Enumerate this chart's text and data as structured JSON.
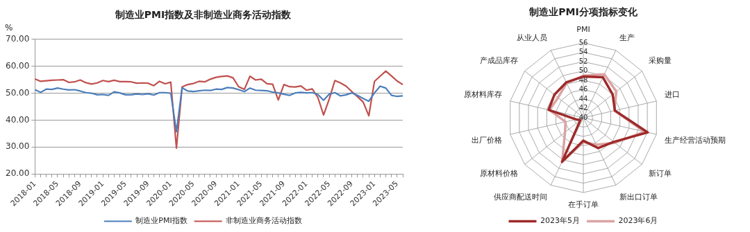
{
  "chart_data": [
    {
      "type": "line",
      "title": "制造业PMI指数及非制造业商务活动指数",
      "ylabel": "%",
      "categories": [
        "2018-01",
        null,
        null,
        null,
        "2018-05",
        null,
        null,
        null,
        "2018-09",
        null,
        null,
        null,
        "2019-01",
        null,
        null,
        null,
        "2019-05",
        null,
        null,
        null,
        "2019-09",
        null,
        null,
        null,
        "2020-01",
        null,
        null,
        null,
        "2020-05",
        null,
        null,
        null,
        "2020-09",
        null,
        null,
        null,
        "2021-01",
        null,
        null,
        null,
        "2021-05",
        null,
        null,
        null,
        "2021-09",
        null,
        null,
        null,
        "2022-01",
        null,
        null,
        null,
        "2022-05",
        null,
        null,
        null,
        "2022-09",
        null,
        null,
        null,
        "2023-01",
        null,
        null,
        null,
        "2023-05",
        null
      ],
      "series": [
        {
          "name": "制造业PMI指数",
          "color": "#4a7ebb",
          "values": [
            51.3,
            50.3,
            51.5,
            51.4,
            51.9,
            51.5,
            51.2,
            51.3,
            50.8,
            50.2,
            50.0,
            49.4,
            49.5,
            49.2,
            50.5,
            50.1,
            49.4,
            49.4,
            49.7,
            49.5,
            49.8,
            49.3,
            50.2,
            50.2,
            50.0,
            35.7,
            52.0,
            50.8,
            50.6,
            50.9,
            51.1,
            51.0,
            51.5,
            51.4,
            52.1,
            51.9,
            51.3,
            50.6,
            51.9,
            51.1,
            51.0,
            50.9,
            50.4,
            50.1,
            49.6,
            49.2,
            50.1,
            50.3,
            50.1,
            50.2,
            49.5,
            47.4,
            49.6,
            50.2,
            49.0,
            49.4,
            50.1,
            49.2,
            48.0,
            47.0,
            50.1,
            52.6,
            51.9,
            49.2,
            48.8,
            49.0
          ]
        },
        {
          "name": "非制造业商务活动指数",
          "color": "#c0504d",
          "values": [
            55.3,
            54.4,
            54.6,
            54.8,
            54.9,
            55.0,
            54.0,
            54.2,
            54.9,
            53.9,
            53.4,
            53.8,
            54.7,
            54.3,
            54.8,
            54.3,
            54.3,
            54.2,
            53.7,
            53.8,
            53.7,
            52.8,
            54.4,
            53.5,
            54.1,
            29.6,
            52.3,
            53.2,
            53.6,
            54.4,
            54.2,
            55.2,
            55.9,
            56.2,
            56.4,
            55.7,
            52.4,
            51.4,
            56.3,
            54.9,
            55.2,
            53.5,
            53.3,
            47.5,
            53.2,
            52.4,
            52.3,
            52.7,
            51.1,
            51.6,
            48.4,
            41.9,
            47.8,
            54.7,
            53.8,
            52.6,
            50.6,
            48.7,
            46.7,
            41.6,
            54.4,
            56.3,
            58.2,
            56.4,
            54.5,
            53.2
          ]
        }
      ],
      "ylim": [
        20,
        70
      ],
      "yticks": [
        {
          "value": 20,
          "label": "20.00"
        },
        {
          "value": 30,
          "label": "30.00"
        },
        {
          "value": 40,
          "label": "40.00"
        },
        {
          "value": 50,
          "label": "50.00"
        },
        {
          "value": 60,
          "label": "60.00"
        },
        {
          "value": 70,
          "label": "70.00"
        }
      ],
      "grid": "y",
      "legend": "bottom",
      "marker": "none",
      "line_style": "solid"
    },
    {
      "type": "radar",
      "title": "制造业PMI分项指标变化",
      "categories": [
        "PMI",
        "生产",
        "采购量",
        "进口",
        "生产经营活动预期",
        "新订单",
        "新出口订单",
        "在手订单",
        "供应商配送时间",
        "原材料价格",
        "出厂价格",
        "原材料库存",
        "产成品库存",
        "从业人员"
      ],
      "series": [
        {
          "name": "2023年5月",
          "color": "#9e2a2b",
          "values": [
            48.8,
            49.6,
            48.0,
            46.9,
            54.1,
            48.3,
            47.2,
            44.9,
            50.5,
            40.8,
            41.6,
            47.6,
            47.9,
            48.4
          ]
        },
        {
          "name": "2023年6月",
          "color": "#dba3a3",
          "values": [
            49.0,
            50.3,
            49.0,
            46.8,
            53.4,
            48.6,
            46.4,
            45.2,
            50.4,
            45.0,
            43.9,
            47.4,
            46.9,
            48.2
          ]
        }
      ],
      "ylim": [
        40,
        56
      ],
      "yticks": [
        40,
        42,
        44,
        46,
        48,
        50,
        52,
        54,
        56
      ],
      "grid": true,
      "legend": "bottom",
      "marker": "none"
    }
  ]
}
